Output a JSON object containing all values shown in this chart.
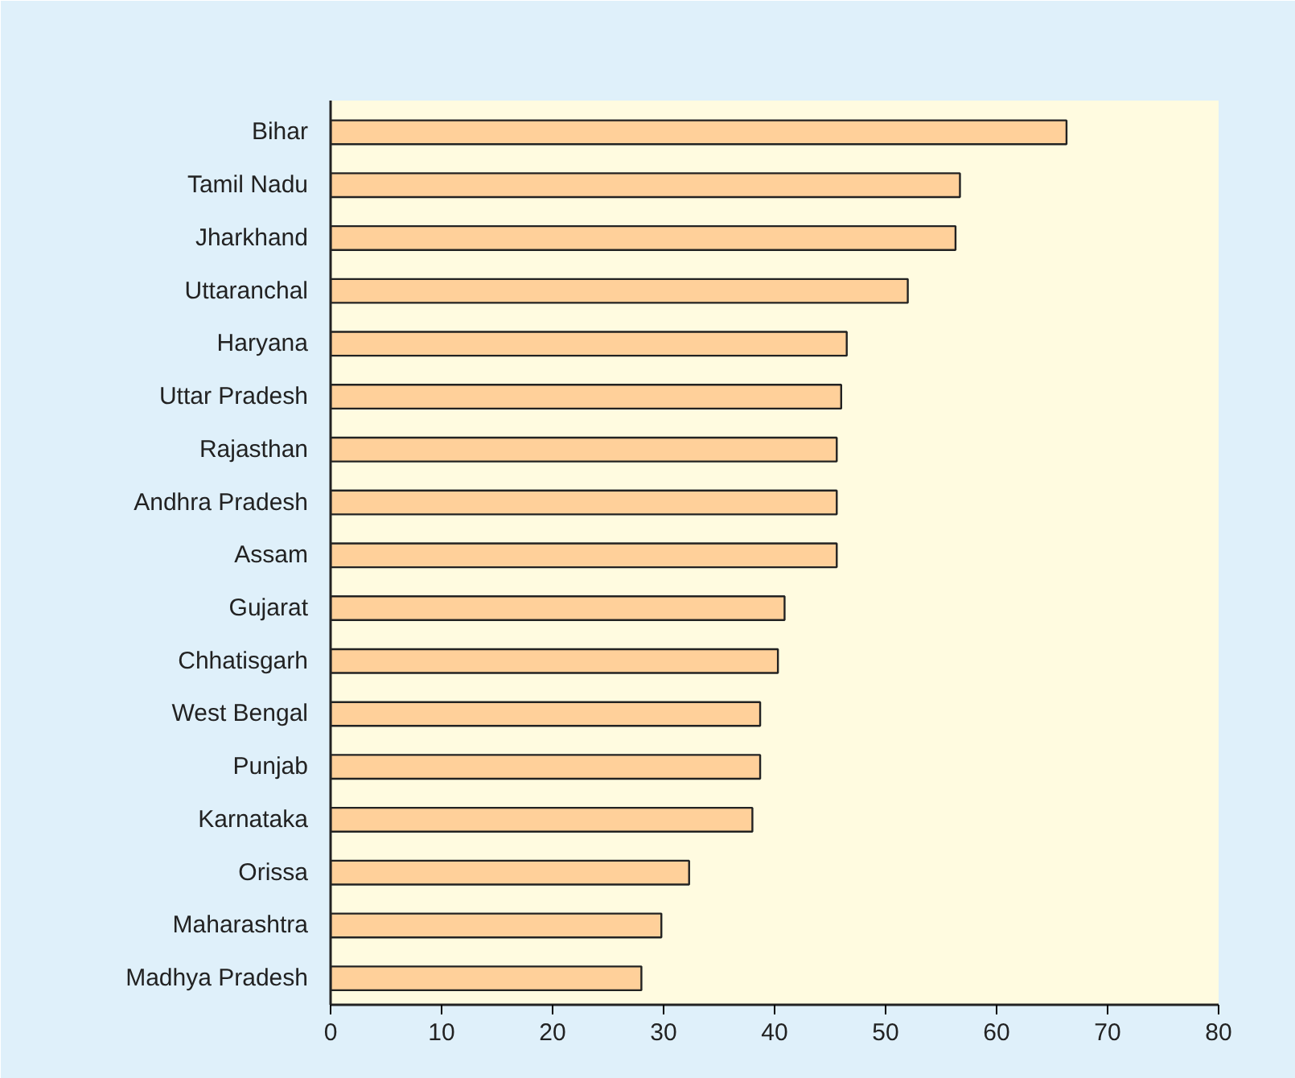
{
  "chart_data": {
    "type": "bar",
    "orientation": "horizontal",
    "categories": [
      "Bihar",
      "Tamil Nadu",
      "Jharkhand",
      "Uttaranchal",
      "Haryana",
      "Uttar Pradesh",
      "Rajasthan",
      "Andhra Pradesh",
      "Assam",
      "Gujarat",
      "Chhatisgarh",
      "West Bengal",
      "Punjab",
      "Karnataka",
      "Orissa",
      "Maharashtra",
      "Madhya Pradesh"
    ],
    "values": [
      66.3,
      56.7,
      56.3,
      52.0,
      46.5,
      46.0,
      45.6,
      45.6,
      45.6,
      40.9,
      40.3,
      38.7,
      38.7,
      38.0,
      32.3,
      29.8,
      28.0
    ],
    "color": "#ffd09a",
    "xlim": [
      0,
      80
    ],
    "xticks": [
      0,
      10,
      20,
      30,
      40,
      50,
      60,
      70,
      80
    ],
    "grid": false
  }
}
